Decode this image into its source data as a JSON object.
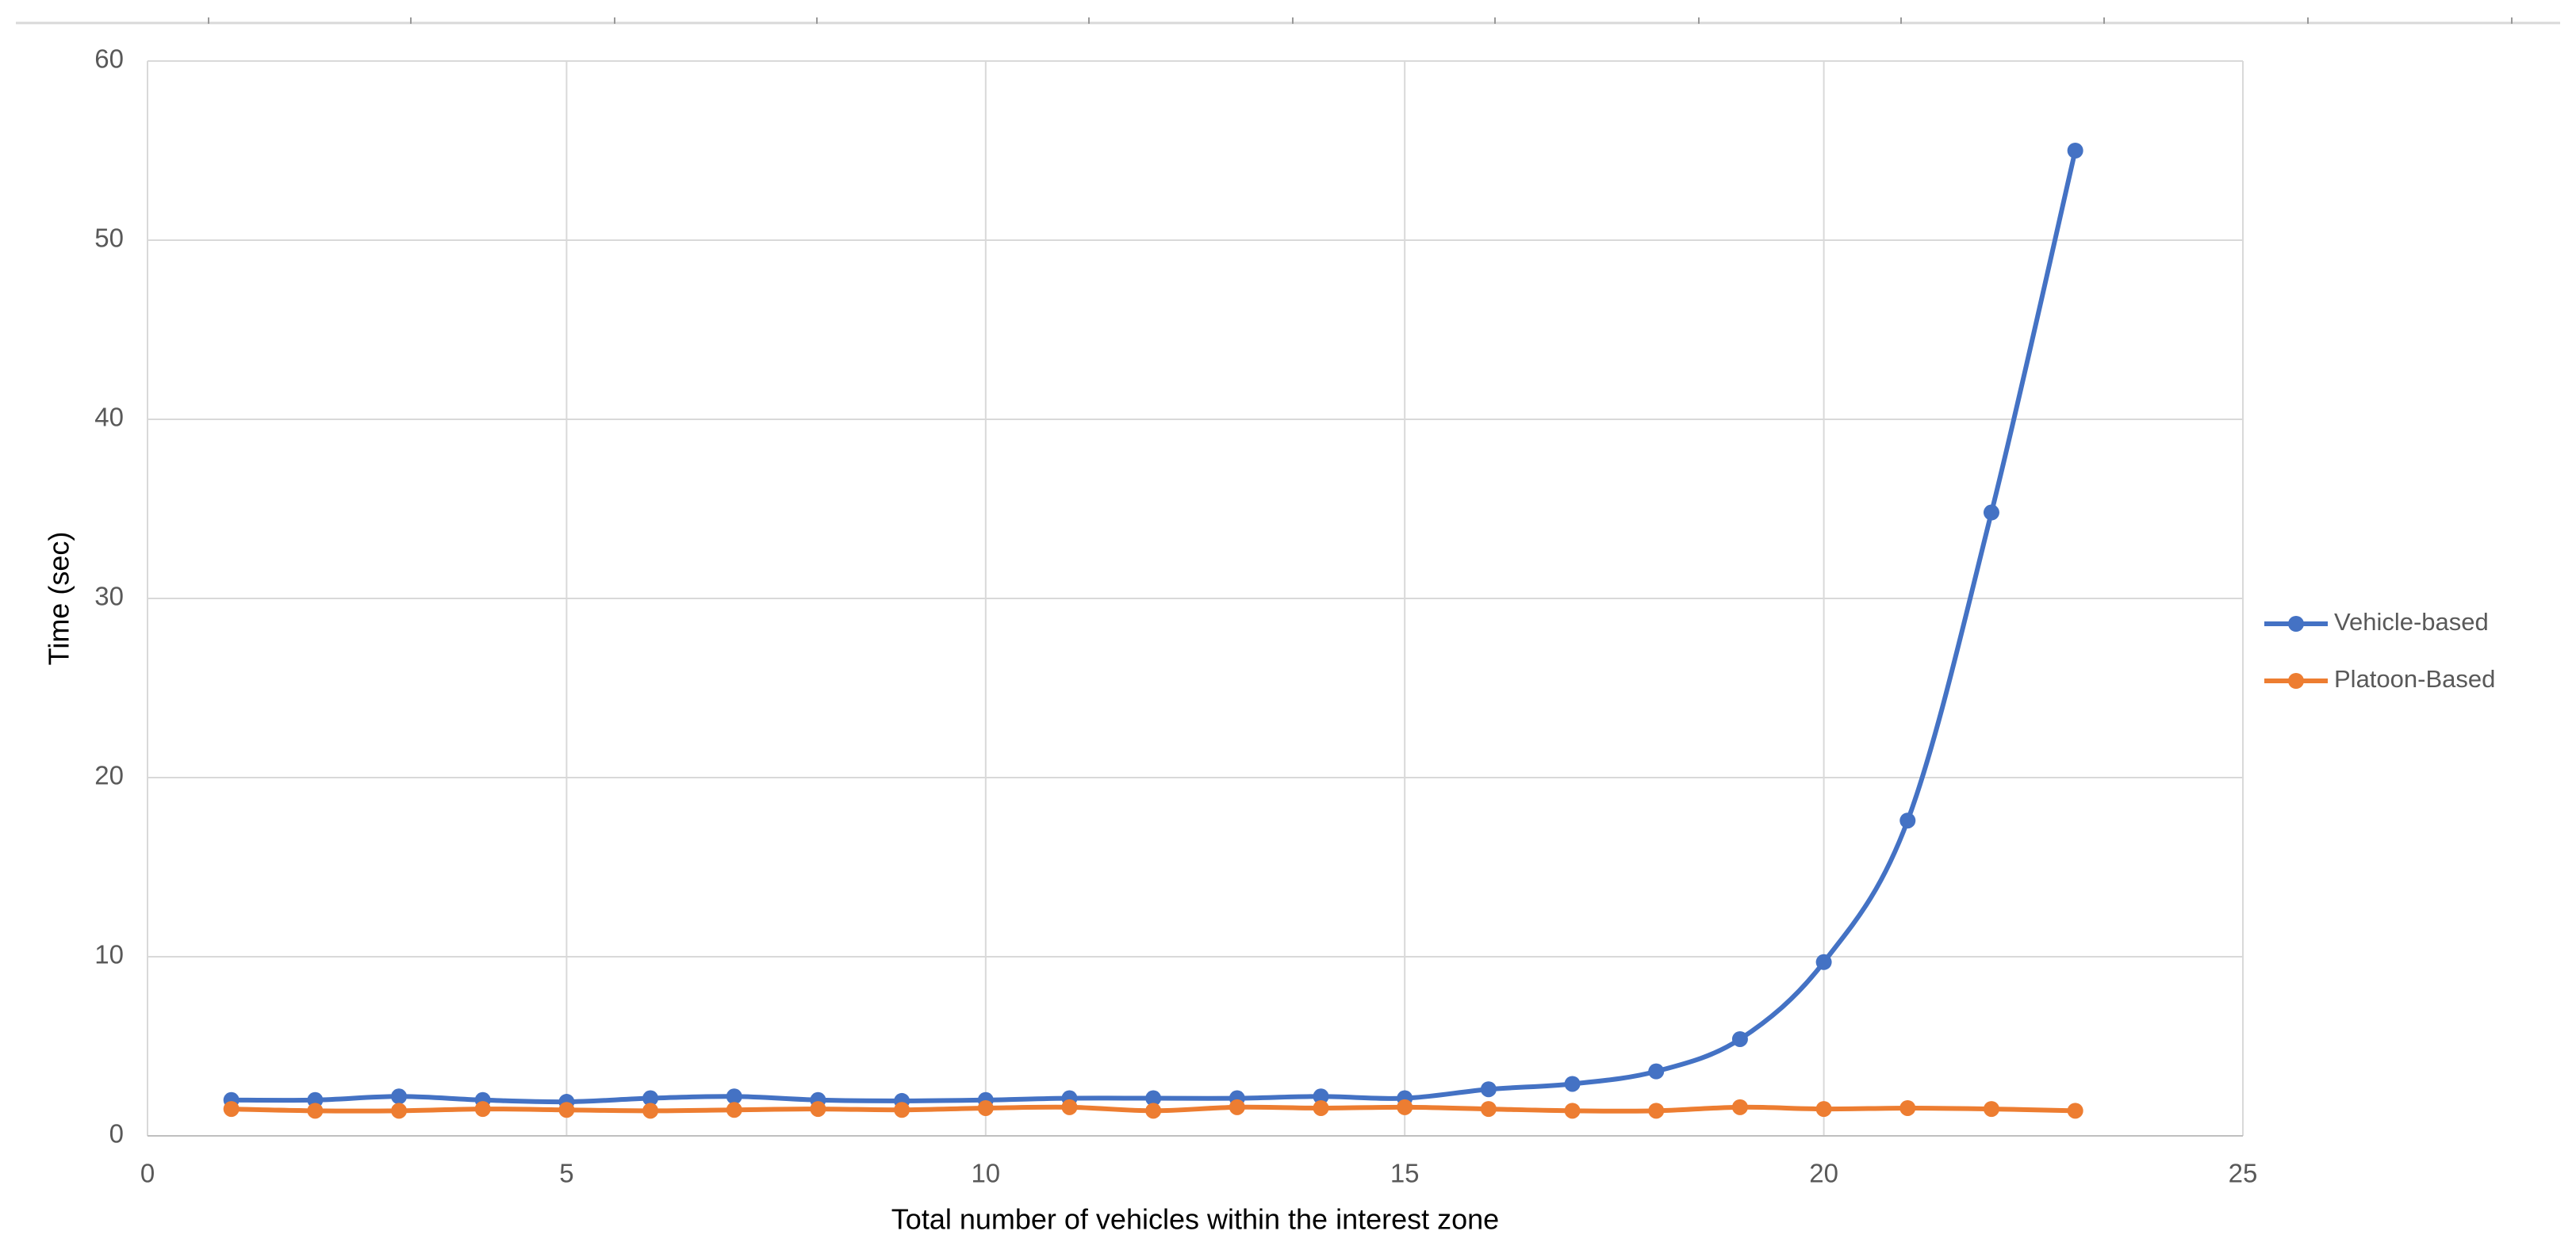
{
  "chart_data": {
    "type": "line",
    "x_label": "Total number of vehicles within the interest zone",
    "y_label": "Time (sec)",
    "x": [
      1,
      2,
      3,
      4,
      5,
      6,
      7,
      8,
      9,
      10,
      11,
      12,
      13,
      14,
      15,
      16,
      17,
      18,
      19,
      20,
      21,
      22,
      23
    ],
    "series": [
      {
        "name": "Vehicle-based",
        "color": "#4472c4",
        "values": [
          2.0,
          2.0,
          2.2,
          2.0,
          1.9,
          2.1,
          2.2,
          2.0,
          1.95,
          2.0,
          2.1,
          2.1,
          2.1,
          2.2,
          2.1,
          2.6,
          2.9,
          3.6,
          5.4,
          9.7,
          17.6,
          34.8,
          55.0
        ]
      },
      {
        "name": "Platoon-Based",
        "color": "#ed7d31",
        "values": [
          1.5,
          1.4,
          1.4,
          1.5,
          1.45,
          1.4,
          1.45,
          1.5,
          1.45,
          1.55,
          1.6,
          1.4,
          1.6,
          1.55,
          1.6,
          1.5,
          1.4,
          1.4,
          1.6,
          1.5,
          1.55,
          1.5,
          1.4
        ]
      }
    ],
    "xlim": [
      0,
      25
    ],
    "xticks": [
      0,
      5,
      10,
      15,
      20,
      25
    ],
    "ylim": [
      0,
      60
    ],
    "yticks": [
      0,
      10,
      20,
      30,
      40,
      50,
      60
    ],
    "grid": true,
    "smooth": true,
    "legend": "right"
  }
}
